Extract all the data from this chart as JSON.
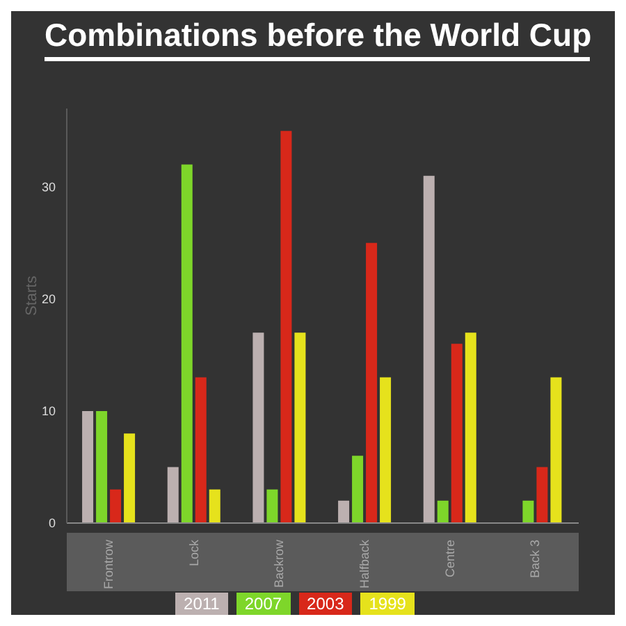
{
  "chart_data": {
    "type": "bar",
    "title": "Combinations before the World Cup",
    "ylabel": "Starts",
    "categories": [
      "Frontrow",
      "Lock",
      "Backrow",
      "Halfback",
      "Centre",
      "Back 3"
    ],
    "series": [
      {
        "name": "2011",
        "color": "#bcb0b0",
        "values": [
          10,
          5,
          17,
          2,
          31,
          null
        ]
      },
      {
        "name": "2007",
        "color": "#7ed62a",
        "values": [
          10,
          32,
          3,
          6,
          2,
          2
        ]
      },
      {
        "name": "2003",
        "color": "#d8281a",
        "values": [
          3,
          13,
          35,
          25,
          16,
          5
        ]
      },
      {
        "name": "1999",
        "color": "#e6e21c",
        "values": [
          8,
          3,
          17,
          13,
          17,
          13
        ]
      }
    ],
    "ylim": [
      0,
      37
    ],
    "yticks": [
      0,
      10,
      20,
      30
    ],
    "legend": "bottom"
  }
}
